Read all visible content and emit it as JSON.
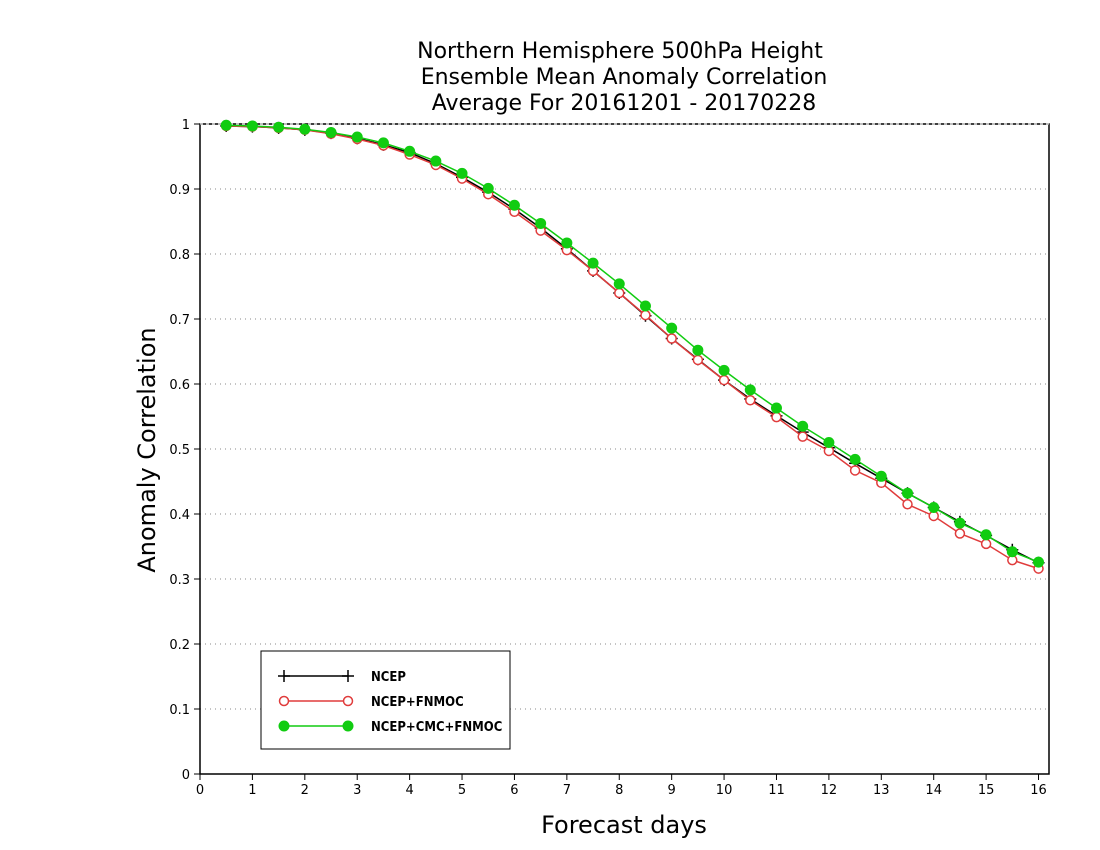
{
  "chart_data": {
    "type": "line",
    "title": [
      "Northern Hemisphere 500hPa Height",
      "Ensemble Mean Anomaly Correlation",
      "Average For 20161201 - 20170228"
    ],
    "xlabel": "Forecast days",
    "ylabel": "Anomaly Correlation",
    "xlim": [
      0,
      16.2
    ],
    "ylim": [
      0,
      1
    ],
    "xticks": [
      0,
      1,
      2,
      3,
      4,
      5,
      6,
      7,
      8,
      9,
      10,
      11,
      12,
      13,
      14,
      15,
      16
    ],
    "yticks": [
      0,
      0.1,
      0.2,
      0.3,
      0.4,
      0.5,
      0.6,
      0.7,
      0.8,
      0.9,
      1
    ],
    "ytick_labels": [
      "0",
      "0.1",
      "0.2",
      "0.3",
      "0.4",
      "0.5",
      "0.6",
      "0.7",
      "0.8",
      "0.9",
      "1"
    ],
    "grid": "horizontal-dotted",
    "legend_position": "bottom-left",
    "x": [
      0.5,
      1,
      1.5,
      2,
      2.5,
      3,
      3.5,
      4,
      4.5,
      5,
      5.5,
      6,
      6.5,
      7,
      7.5,
      8,
      8.5,
      9,
      9.5,
      10,
      10.5,
      11,
      11.5,
      12,
      12.5,
      13,
      13.5,
      14,
      14.5,
      15,
      15.5,
      16
    ],
    "series": [
      {
        "name": "NCEP",
        "color": "#000000",
        "marker": "plus",
        "values": [
          0.997,
          0.996,
          0.994,
          0.991,
          0.986,
          0.978,
          0.968,
          0.956,
          0.939,
          0.918,
          0.895,
          0.869,
          0.84,
          0.808,
          0.774,
          0.74,
          0.705,
          0.67,
          0.638,
          0.606,
          0.577,
          0.551,
          0.526,
          0.502,
          0.478,
          0.455,
          0.432,
          0.41,
          0.388,
          0.367,
          0.345,
          0.325
        ]
      },
      {
        "name": "NCEP+FNMOC",
        "color": "#e03c3c",
        "marker": "open-circle",
        "values": [
          0.997,
          0.996,
          0.994,
          0.991,
          0.985,
          0.977,
          0.967,
          0.953,
          0.937,
          0.916,
          0.892,
          0.865,
          0.836,
          0.806,
          0.774,
          0.74,
          0.706,
          0.67,
          0.637,
          0.606,
          0.575,
          0.549,
          0.519,
          0.497,
          0.467,
          0.448,
          0.415,
          0.397,
          0.37,
          0.354,
          0.329,
          0.316
        ]
      },
      {
        "name": "NCEP+CMC+FNMOC",
        "color": "#11cc11",
        "marker": "filled-circle",
        "values": [
          0.998,
          0.997,
          0.995,
          0.992,
          0.987,
          0.98,
          0.971,
          0.958,
          0.943,
          0.924,
          0.901,
          0.875,
          0.847,
          0.817,
          0.786,
          0.754,
          0.72,
          0.686,
          0.652,
          0.621,
          0.591,
          0.563,
          0.535,
          0.51,
          0.484,
          0.458,
          0.432,
          0.41,
          0.386,
          0.368,
          0.342,
          0.326
        ]
      }
    ]
  }
}
